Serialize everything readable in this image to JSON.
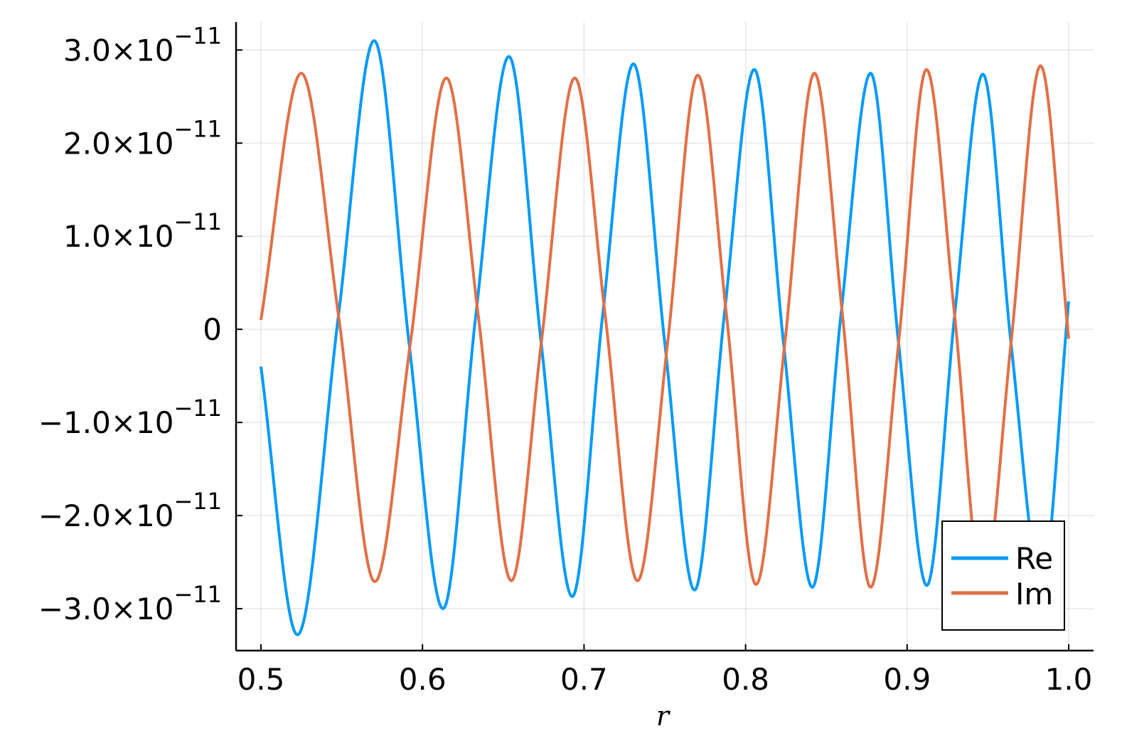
{
  "chart_data": {
    "type": "line",
    "title": "",
    "xlabel": "r",
    "ylabel": "",
    "xlim": [
      0.4846,
      1.0154
    ],
    "ylim": [
      -3.45e-11,
      3.3e-11
    ],
    "x_ticks": [
      {
        "value": 0.5,
        "label": "0.5"
      },
      {
        "value": 0.6,
        "label": "0.6"
      },
      {
        "value": 0.7,
        "label": "0.7"
      },
      {
        "value": 0.8,
        "label": "0.8"
      },
      {
        "value": 0.9,
        "label": "0.9"
      },
      {
        "value": 1.0,
        "label": "1.0"
      }
    ],
    "y_ticks": [
      {
        "value": 3e-11,
        "mantissa": "3.0×10",
        "exponent": "−11"
      },
      {
        "value": 2e-11,
        "mantissa": "2.0×10",
        "exponent": "−11"
      },
      {
        "value": 1e-11,
        "mantissa": "1.0×10",
        "exponent": "−11"
      },
      {
        "value": 0,
        "mantissa": "0",
        "exponent": ""
      },
      {
        "value": -1e-11,
        "mantissa": "−1.0×10",
        "exponent": "−11"
      },
      {
        "value": -2e-11,
        "mantissa": "−2.0×10",
        "exponent": "−11"
      },
      {
        "value": -3e-11,
        "mantissa": "−3.0×10",
        "exponent": "−11"
      }
    ],
    "grid": true,
    "legend_position": "bottom-right",
    "series": [
      {
        "name": "Re",
        "color": "#009af9",
        "x": [
          0.5,
          0.5226,
          0.548,
          0.5701,
          0.5917,
          0.6127,
          0.633,
          0.6535,
          0.6735,
          0.6927,
          0.7115,
          0.7306,
          0.75,
          0.7684,
          0.7868,
          0.8054,
          0.8235,
          0.8413,
          0.859,
          0.8774,
          0.8947,
          0.9122,
          0.9294,
          0.9469,
          0.9643,
          0.9832,
          1.0
        ],
        "y": [
          -4e-12,
          -3.28e-11,
          1.5e-12,
          3.1e-11,
          -1.5e-12,
          -3e-11,
          1.5e-12,
          2.93e-11,
          -1.5e-12,
          -2.87e-11,
          1.5e-12,
          2.85e-11,
          -1.5e-12,
          -2.8e-11,
          1.5e-12,
          2.79e-11,
          -1.5e-12,
          -2.77e-11,
          1.5e-12,
          2.75e-11,
          -1.5e-12,
          -2.75e-11,
          1.5e-12,
          2.74e-11,
          -1.5e-12,
          -2.74e-11,
          3e-12
        ]
      },
      {
        "name": "Im",
        "color": "#e26f46",
        "x": [
          0.5,
          0.525,
          0.548,
          0.5705,
          0.5925,
          0.6148,
          0.6345,
          0.655,
          0.6735,
          0.6943,
          0.7131,
          0.7331,
          0.7517,
          0.7704,
          0.7882,
          0.8065,
          0.8243,
          0.8426,
          0.86,
          0.8774,
          0.8947,
          0.912,
          0.9294,
          0.9469,
          0.9643,
          0.9826,
          1.0
        ],
        "y": [
          1e-12,
          2.75e-11,
          1.5e-12,
          -2.71e-11,
          -1.5e-12,
          2.7e-11,
          1.5e-12,
          -2.7e-11,
          -1.5e-12,
          2.7e-11,
          1.5e-12,
          -2.7e-11,
          -1.5e-12,
          2.73e-11,
          1.5e-12,
          -2.74e-11,
          -1.5e-12,
          2.75e-11,
          1.5e-12,
          -2.77e-11,
          -1.5e-12,
          2.79e-11,
          1.5e-12,
          -2.8e-11,
          -1.5e-12,
          2.83e-11,
          -1e-12
        ]
      }
    ]
  }
}
